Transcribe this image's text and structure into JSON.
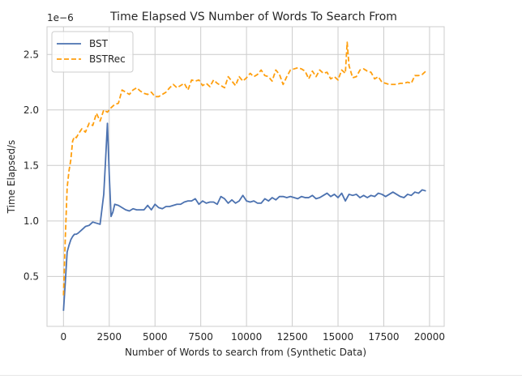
{
  "chart_data": {
    "type": "line",
    "title": "Time Elapsed VS Number of Words To Search From",
    "xlabel": "Number of Words to search from (Synthetic Data)",
    "ylabel": "Time Elapsed/s",
    "y_offset_label": "1e−6",
    "xlim": [
      -900,
      20800
    ],
    "ylim": [
      0.05,
      2.75
    ],
    "x_ticks": [
      0,
      2500,
      5000,
      7500,
      10000,
      12500,
      15000,
      17500,
      20000
    ],
    "x_tick_labels": [
      "0",
      "2500",
      "5000",
      "7500",
      "10000",
      "12500",
      "15000",
      "17500",
      "20000"
    ],
    "y_ticks": [
      0.5,
      1.0,
      1.5,
      2.0,
      2.5
    ],
    "y_tick_labels": [
      "0.5",
      "1.0",
      "1.5",
      "2.0",
      "2.5"
    ],
    "grid": true,
    "legend_position": "top-left",
    "series": [
      {
        "name": "BST",
        "color": "#4c72b0",
        "style": "solid",
        "x": [
          0,
          100,
          200,
          300,
          400,
          500,
          600,
          700,
          800,
          1000,
          1200,
          1400,
          1600,
          1800,
          2000,
          2200,
          2300,
          2400,
          2500,
          2600,
          2700,
          2800,
          3000,
          3200,
          3400,
          3600,
          3800,
          4000,
          4200,
          4400,
          4600,
          4800,
          5000,
          5200,
          5400,
          5600,
          5800,
          6000,
          6200,
          6400,
          6600,
          6800,
          7000,
          7200,
          7400,
          7600,
          7800,
          8000,
          8200,
          8400,
          8600,
          8800,
          9000,
          9200,
          9400,
          9600,
          9800,
          10000,
          10200,
          10400,
          10600,
          10800,
          11000,
          11200,
          11400,
          11600,
          11800,
          12000,
          12200,
          12400,
          12600,
          12800,
          13000,
          13200,
          13400,
          13600,
          13800,
          14000,
          14200,
          14400,
          14600,
          14800,
          15000,
          15200,
          15400,
          15600,
          15800,
          16000,
          16200,
          16400,
          16600,
          16800,
          17000,
          17200,
          17400,
          17600,
          17800,
          18000,
          18200,
          18400,
          18600,
          18800,
          19000,
          19200,
          19400,
          19600,
          19800
        ],
        "values": [
          0.19,
          0.45,
          0.72,
          0.78,
          0.83,
          0.86,
          0.88,
          0.88,
          0.89,
          0.92,
          0.95,
          0.96,
          0.99,
          0.98,
          0.97,
          1.24,
          1.55,
          1.88,
          1.42,
          1.04,
          1.08,
          1.15,
          1.14,
          1.12,
          1.1,
          1.09,
          1.11,
          1.1,
          1.1,
          1.1,
          1.14,
          1.1,
          1.15,
          1.12,
          1.11,
          1.13,
          1.13,
          1.14,
          1.15,
          1.15,
          1.17,
          1.18,
          1.18,
          1.2,
          1.15,
          1.18,
          1.16,
          1.17,
          1.17,
          1.15,
          1.22,
          1.2,
          1.16,
          1.19,
          1.16,
          1.18,
          1.23,
          1.18,
          1.17,
          1.18,
          1.16,
          1.16,
          1.2,
          1.18,
          1.21,
          1.19,
          1.22,
          1.22,
          1.21,
          1.22,
          1.21,
          1.2,
          1.22,
          1.21,
          1.21,
          1.23,
          1.2,
          1.21,
          1.23,
          1.25,
          1.22,
          1.24,
          1.21,
          1.25,
          1.18,
          1.24,
          1.23,
          1.24,
          1.21,
          1.23,
          1.21,
          1.23,
          1.22,
          1.25,
          1.24,
          1.22,
          1.24,
          1.26,
          1.24,
          1.22,
          1.21,
          1.24,
          1.23,
          1.26,
          1.25,
          1.28,
          1.27
        ]
      },
      {
        "name": "BSTRec",
        "color": "#ff9f0e",
        "style": "dashed",
        "x": [
          0,
          100,
          200,
          300,
          400,
          500,
          600,
          700,
          800,
          1000,
          1200,
          1400,
          1600,
          1800,
          2000,
          2200,
          2400,
          2600,
          2800,
          3000,
          3200,
          3400,
          3600,
          3800,
          4000,
          4200,
          4400,
          4600,
          4800,
          5000,
          5200,
          5400,
          5600,
          5800,
          6000,
          6200,
          6400,
          6600,
          6800,
          7000,
          7200,
          7400,
          7600,
          7800,
          8000,
          8200,
          8400,
          8600,
          8800,
          9000,
          9200,
          9400,
          9600,
          9800,
          10000,
          10200,
          10400,
          10600,
          10800,
          11000,
          11200,
          11400,
          11600,
          11800,
          12000,
          12200,
          12400,
          12600,
          12800,
          13000,
          13200,
          13400,
          13600,
          13800,
          14000,
          14200,
          14400,
          14600,
          14800,
          15000,
          15200,
          15400,
          15500,
          15600,
          15800,
          16000,
          16200,
          16400,
          16600,
          16800,
          17000,
          17200,
          17400,
          17600,
          17800,
          18000,
          18200,
          18400,
          18600,
          18800,
          19000,
          19200,
          19400,
          19600,
          19800
        ],
        "values": [
          0.33,
          0.85,
          1.3,
          1.45,
          1.55,
          1.72,
          1.76,
          1.75,
          1.78,
          1.83,
          1.8,
          1.88,
          1.86,
          1.97,
          1.9,
          2.0,
          1.98,
          2.02,
          2.05,
          2.06,
          2.18,
          2.16,
          2.14,
          2.18,
          2.2,
          2.17,
          2.15,
          2.14,
          2.16,
          2.12,
          2.12,
          2.14,
          2.16,
          2.2,
          2.23,
          2.2,
          2.22,
          2.24,
          2.18,
          2.27,
          2.26,
          2.27,
          2.22,
          2.24,
          2.21,
          2.27,
          2.24,
          2.22,
          2.2,
          2.3,
          2.26,
          2.22,
          2.3,
          2.26,
          2.29,
          2.33,
          2.3,
          2.32,
          2.36,
          2.31,
          2.3,
          2.26,
          2.36,
          2.32,
          2.23,
          2.3,
          2.36,
          2.37,
          2.38,
          2.37,
          2.35,
          2.28,
          2.35,
          2.3,
          2.36,
          2.33,
          2.34,
          2.28,
          2.3,
          2.27,
          2.36,
          2.33,
          2.61,
          2.4,
          2.29,
          2.3,
          2.36,
          2.37,
          2.35,
          2.34,
          2.28,
          2.3,
          2.25,
          2.24,
          2.23,
          2.23,
          2.23,
          2.24,
          2.24,
          2.25,
          2.24,
          2.31,
          2.31,
          2.32,
          2.35
        ]
      }
    ]
  }
}
